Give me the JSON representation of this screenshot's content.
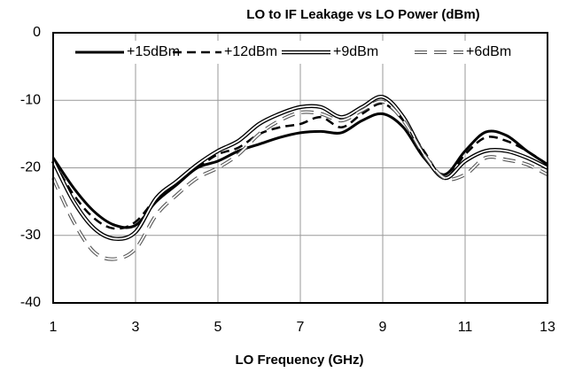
{
  "chart_data": {
    "type": "line",
    "title": "LO to IF Leakage vs LO Power (dBm)",
    "x_label": "LO Frequency  (GHz)",
    "x": [
      1,
      1.5,
      2,
      2.5,
      3,
      3.5,
      4,
      4.5,
      5,
      5.5,
      6,
      6.5,
      7,
      7.5,
      8,
      8.5,
      9,
      9.5,
      10,
      10.5,
      11,
      11.5,
      12,
      12.5,
      13
    ],
    "series": [
      {
        "name": "+15dBm",
        "color": "#000000",
        "style": "solid",
        "values": [
          -18.5,
          -23,
          -26.5,
          -28.5,
          -28.5,
          -25,
          -22.5,
          -20,
          -19,
          -17.5,
          -16.5,
          -15.5,
          -14.8,
          -14.6,
          -14.8,
          -13,
          -12,
          -14,
          -18.5,
          -21,
          -17.5,
          -14.7,
          -15.2,
          -17.5,
          -19.5
        ]
      },
      {
        "name": "+12dBm",
        "color": "#000000",
        "style": "dashed",
        "values": [
          -19,
          -24,
          -27.5,
          -29,
          -28,
          -24.5,
          -22,
          -20,
          -18,
          -17,
          -15,
          -14,
          -13.5,
          -12.5,
          -14,
          -12,
          -10.5,
          -13,
          -17.5,
          -21.5,
          -18,
          -15.5,
          -16,
          -17.5,
          -19.5
        ]
      },
      {
        "name": "+9dBm",
        "color": "#000000",
        "style": "double",
        "values": [
          -19,
          -25,
          -29,
          -30.5,
          -29.5,
          -24.5,
          -22,
          -19.5,
          -17.5,
          -16,
          -13.5,
          -12,
          -11,
          -11,
          -12.5,
          -11,
          -9.5,
          -12.5,
          -18,
          -21.5,
          -19,
          -17.5,
          -17.5,
          -18.5,
          -20
        ]
      },
      {
        "name": "+6dBm",
        "color": "#555555",
        "style": "double-dashed",
        "values": [
          -21.5,
          -28,
          -32.5,
          -33.5,
          -32,
          -27,
          -24,
          -21.5,
          -20,
          -18,
          -15,
          -13,
          -11.8,
          -12,
          -13,
          -11.5,
          -10.2,
          -13,
          -18,
          -21.5,
          -21,
          -18.5,
          -18.8,
          -19.5,
          -21
        ]
      }
    ],
    "xlim": [
      1,
      13
    ],
    "xticks": [
      1,
      3,
      5,
      7,
      9,
      11,
      13
    ],
    "ylim": [
      -40,
      0
    ],
    "yticks": [
      -40,
      -30,
      -20,
      -10,
      0
    ],
    "grid": true,
    "legend": "top"
  }
}
